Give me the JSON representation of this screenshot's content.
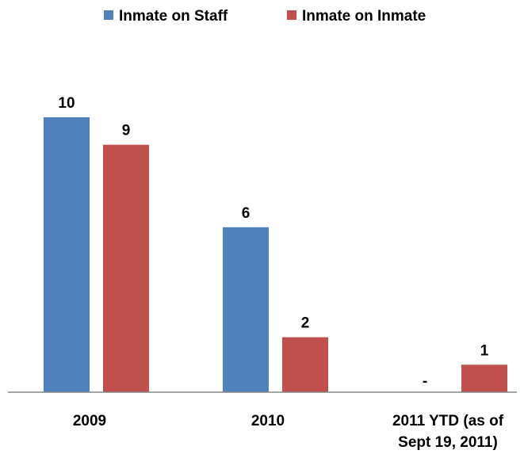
{
  "chart_data": {
    "type": "bar",
    "title": "",
    "xlabel": "",
    "ylabel": "",
    "categories": [
      [
        "2009"
      ],
      [
        "2010"
      ],
      [
        "2011 YTD (as of",
        "Sept 19, 2011)"
      ]
    ],
    "series": [
      {
        "name": "Inmate on Staff",
        "color": "#4F81BD",
        "values": [
          10,
          6,
          0
        ],
        "labels": [
          "10",
          "6",
          "-"
        ]
      },
      {
        "name": "Inmate on Inmate",
        "color": "#C0504D",
        "values": [
          9,
          2,
          1
        ],
        "labels": [
          "9",
          "2",
          "1"
        ]
      }
    ],
    "ylim": [
      0,
      10
    ],
    "grid": false,
    "legend_position": "top"
  }
}
